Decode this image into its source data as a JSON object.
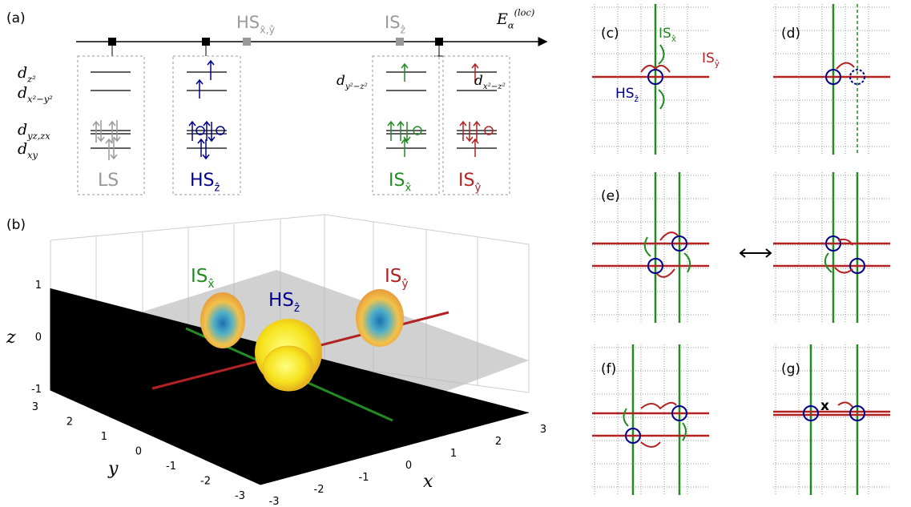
{
  "panel_labels": [
    "(a)",
    "(b)",
    "(c)",
    "(d)",
    "(e)",
    "(f)",
    "(g)"
  ],
  "panel_a": {
    "axis_label": {
      "main": "E",
      "sub": "α",
      "sup": "(loc)"
    },
    "markers": [
      {
        "main": "HS",
        "sub": "x̂,ŷ"
      },
      {
        "main": "IS",
        "sub": "ẑ"
      }
    ],
    "orbitals": [
      {
        "main": "d",
        "sub": "z²"
      },
      {
        "main": "d",
        "sub": "x²−y²"
      },
      {
        "main": "d",
        "sub": "yz,zx"
      },
      {
        "main": "d",
        "sub": "xy"
      }
    ],
    "extra_orbitals": [
      {
        "main": "d",
        "sub": "y²−z²"
      },
      {
        "main": "d",
        "sub": "x²−z²"
      }
    ],
    "states": [
      {
        "main": "LS"
      },
      {
        "main": "HS",
        "sub": "ẑ"
      },
      {
        "main": "IS",
        "sub": "x̂"
      },
      {
        "main": "IS",
        "sub": "ŷ"
      }
    ]
  },
  "panel_b": {
    "labels": [
      {
        "main": "IS",
        "sub": "x̂"
      },
      {
        "main": "HS",
        "sub": "ẑ"
      },
      {
        "main": "IS",
        "sub": "ŷ"
      }
    ],
    "axes": {
      "x": "x",
      "y": "y",
      "z": "z"
    },
    "xticks": [
      -3,
      -2,
      -1,
      0,
      1,
      2,
      3
    ],
    "yticks": [
      3,
      2,
      1,
      0,
      -1,
      -2,
      -3
    ],
    "zticks": [
      1,
      0,
      -1
    ]
  },
  "panel_c": {
    "labels": [
      {
        "main": "IS",
        "sub": "x̂"
      },
      {
        "main": "IS",
        "sub": "ŷ"
      },
      {
        "main": "HS",
        "sub": "ẑ"
      }
    ]
  },
  "panel_g": {
    "label": "x"
  }
}
